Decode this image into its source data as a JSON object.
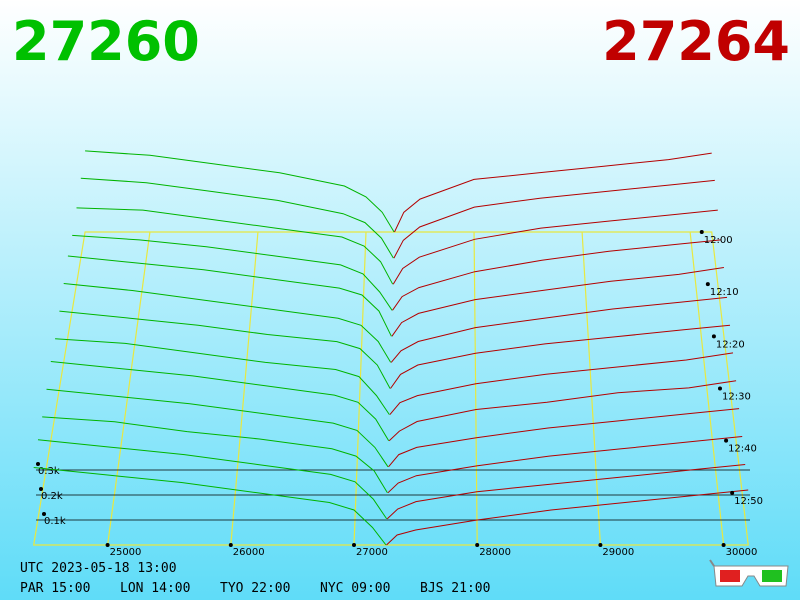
{
  "chart_data": {
    "type": "depth3d",
    "bid_price": 27260,
    "ask_price": 27264,
    "bid_color": "#00b400",
    "ask_color": "#b40000",
    "bid_text_color": "#00c000",
    "ask_text_color": "#c00000",
    "xlim": [
      24400,
      30200
    ],
    "xticks": [
      25000,
      26000,
      27000,
      28000,
      29000,
      30000
    ],
    "tlim": [
      0,
      60
    ],
    "tticks": [
      {
        "value": 0,
        "label": "12:00"
      },
      {
        "value": 10,
        "label": "12:10"
      },
      {
        "value": 20,
        "label": "12:20"
      },
      {
        "value": 30,
        "label": "12:30"
      },
      {
        "value": 40,
        "label": "12:40"
      },
      {
        "value": 50,
        "label": "12:50"
      }
    ],
    "dticks": [
      {
        "value": 0.1,
        "label": "0.1k"
      },
      {
        "value": 0.2,
        "label": "0.2k"
      },
      {
        "value": 0.3,
        "label": "0.3k"
      }
    ],
    "snapshot_times": [
      0,
      5,
      10,
      15,
      20,
      25,
      30,
      35,
      40,
      45,
      50,
      55,
      60
    ],
    "bid": {
      "x": [
        24400,
        25000,
        25600,
        26200,
        26800,
        27000,
        27150,
        27260
      ],
      "snapshots": [
        [
          0.37,
          0.35,
          0.31,
          0.27,
          0.21,
          0.16,
          0.09,
          0
        ],
        [
          0.36,
          0.34,
          0.3,
          0.26,
          0.2,
          0.16,
          0.09,
          0
        ],
        [
          0.34,
          0.33,
          0.29,
          0.25,
          0.21,
          0.17,
          0.1,
          0
        ],
        [
          0.33,
          0.31,
          0.28,
          0.24,
          0.2,
          0.16,
          0.08,
          0
        ],
        [
          0.35,
          0.32,
          0.29,
          0.25,
          0.21,
          0.18,
          0.11,
          0
        ],
        [
          0.34,
          0.31,
          0.27,
          0.23,
          0.19,
          0.16,
          0.09,
          0
        ],
        [
          0.33,
          0.3,
          0.27,
          0.23,
          0.2,
          0.17,
          0.1,
          0
        ],
        [
          0.32,
          0.3,
          0.26,
          0.22,
          0.19,
          0.16,
          0.08,
          0
        ],
        [
          0.33,
          0.3,
          0.27,
          0.23,
          0.19,
          0.16,
          0.09,
          0
        ],
        [
          0.32,
          0.29,
          0.26,
          0.22,
          0.18,
          0.15,
          0.08,
          0
        ],
        [
          0.31,
          0.29,
          0.25,
          0.22,
          0.18,
          0.15,
          0.09,
          0
        ],
        [
          0.32,
          0.29,
          0.26,
          0.22,
          0.18,
          0.15,
          0.08,
          0
        ],
        [
          0.31,
          0.28,
          0.25,
          0.21,
          0.17,
          0.14,
          0.07,
          0
        ]
      ]
    },
    "ask": {
      "x": [
        27264,
        27350,
        27500,
        28000,
        28600,
        29200,
        29800,
        30200
      ],
      "snapshots": [
        [
          0,
          0.09,
          0.15,
          0.24,
          0.27,
          0.3,
          0.33,
          0.36
        ],
        [
          0,
          0.08,
          0.14,
          0.23,
          0.27,
          0.3,
          0.33,
          0.35
        ],
        [
          0,
          0.07,
          0.12,
          0.2,
          0.25,
          0.28,
          0.31,
          0.33
        ],
        [
          0,
          0.06,
          0.1,
          0.17,
          0.22,
          0.26,
          0.29,
          0.31
        ],
        [
          0,
          0.06,
          0.1,
          0.16,
          0.2,
          0.24,
          0.27,
          0.3
        ],
        [
          0,
          0.05,
          0.09,
          0.15,
          0.19,
          0.23,
          0.26,
          0.28
        ],
        [
          0,
          0.06,
          0.1,
          0.15,
          0.19,
          0.22,
          0.25,
          0.27
        ],
        [
          0,
          0.05,
          0.08,
          0.13,
          0.17,
          0.2,
          0.23,
          0.26
        ],
        [
          0,
          0.04,
          0.08,
          0.13,
          0.16,
          0.2,
          0.22,
          0.25
        ],
        [
          0,
          0.05,
          0.08,
          0.12,
          0.16,
          0.19,
          0.22,
          0.24
        ],
        [
          0,
          0.04,
          0.07,
          0.11,
          0.15,
          0.18,
          0.21,
          0.23
        ],
        [
          0,
          0.04,
          0.07,
          0.11,
          0.14,
          0.17,
          0.2,
          0.22
        ],
        [
          0,
          0.04,
          0.06,
          0.1,
          0.14,
          0.17,
          0.2,
          0.22
        ]
      ]
    }
  },
  "footer": {
    "utc": "UTC 2023-05-18 13:00",
    "clocks": [
      "PAR 15:00",
      "LON 14:00",
      "TYO 22:00",
      "NYC 09:00",
      "BJS 21:00"
    ]
  }
}
